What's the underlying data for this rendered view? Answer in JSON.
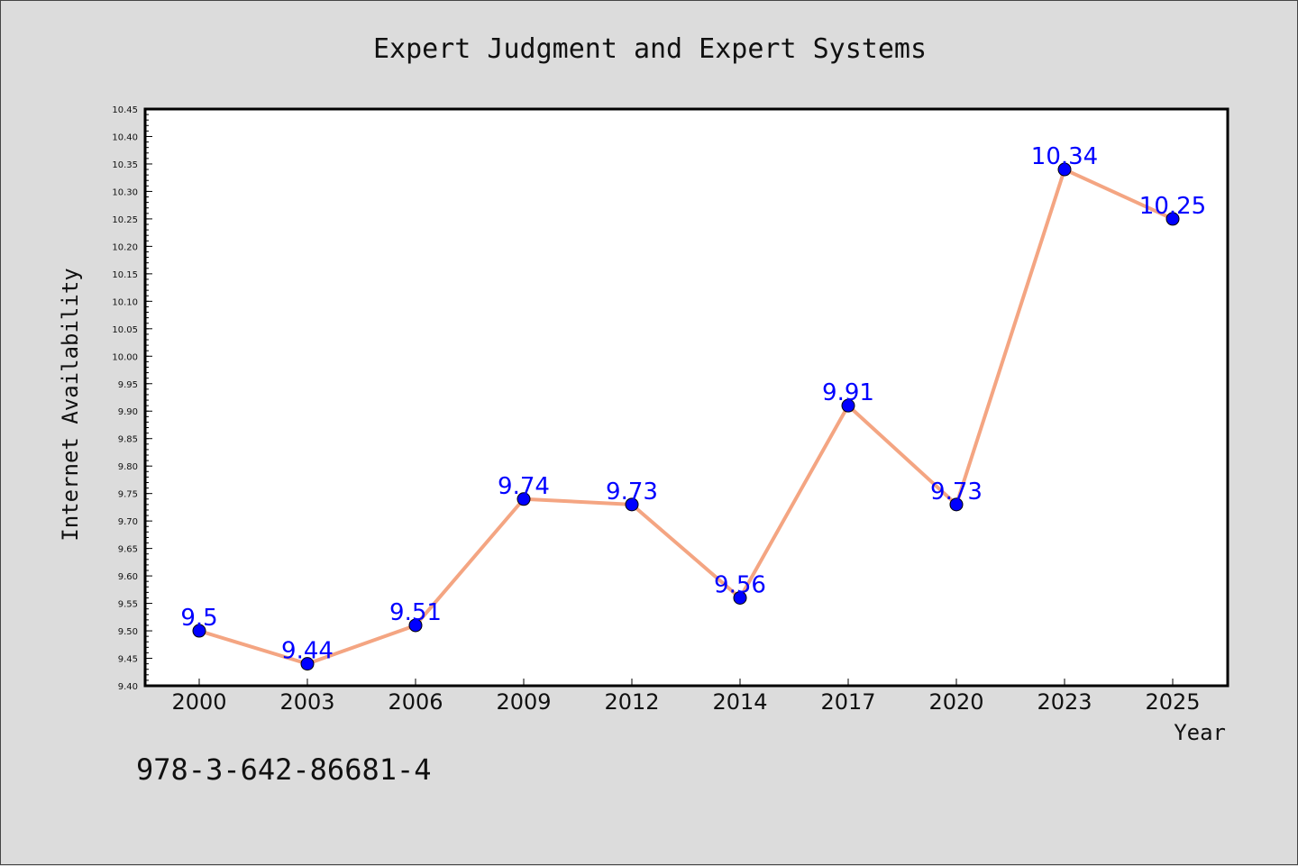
{
  "chart_data": {
    "type": "line",
    "title": "Expert Judgment and Expert Systems",
    "xlabel": "Year",
    "ylabel": "Internet Availability",
    "categories": [
      "2000",
      "2003",
      "2006",
      "2009",
      "2012",
      "2014",
      "2017",
      "2020",
      "2023",
      "2025"
    ],
    "series": [
      {
        "values": [
          9.5,
          9.44,
          9.51,
          9.74,
          9.73,
          9.56,
          9.91,
          9.73,
          10.34,
          10.25
        ],
        "labels": [
          "9.5",
          "9.44",
          "9.51",
          "9.74",
          "9.73",
          "9.56",
          "9.91",
          "9.73",
          "10.34",
          "10.25"
        ],
        "line_color": "#f4a582",
        "marker_color": "#0000ff"
      }
    ],
    "ylim": [
      9.4,
      10.45
    ],
    "yticks": [
      "9.40",
      "9.45",
      "9.50",
      "9.55",
      "9.60",
      "9.65",
      "9.70",
      "9.75",
      "9.80",
      "9.85",
      "9.90",
      "9.95",
      "10.00",
      "10.05",
      "10.10",
      "10.15",
      "10.20",
      "10.25",
      "10.30",
      "10.35",
      "10.40",
      "10.45"
    ],
    "grid": false,
    "legend": "none"
  },
  "footnote": "978-3-642-86681-4",
  "colors": {
    "background": "#dcdcdc",
    "plot_background": "#ffffff"
  }
}
